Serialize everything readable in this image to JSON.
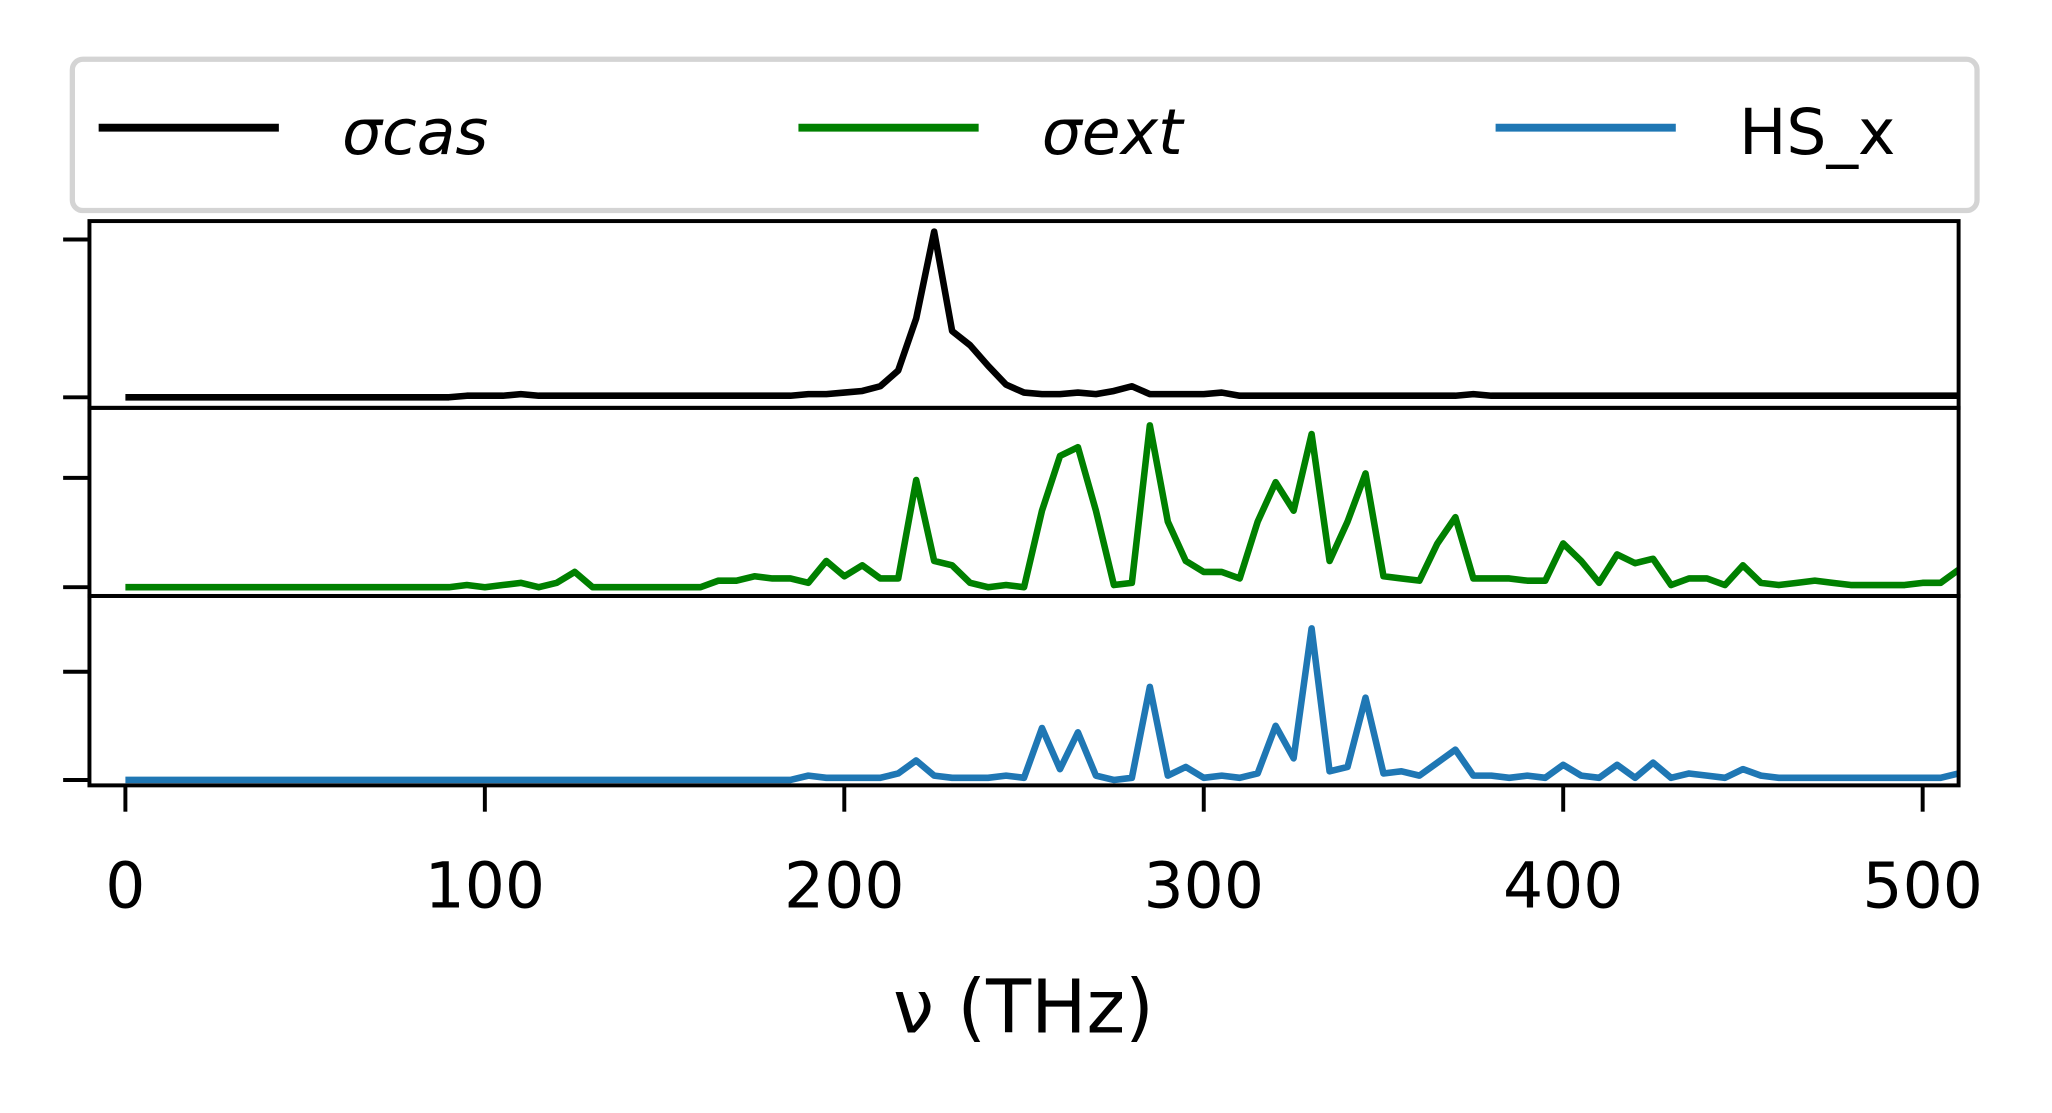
{
  "chart_data": {
    "type": "line",
    "xlabel": "ν (THz)",
    "legend": "upper center",
    "grid": false,
    "xlim": [
      -10,
      510
    ],
    "xticks": [
      0,
      100,
      200,
      300,
      400,
      500
    ],
    "x": [
      0,
      20,
      40,
      60,
      80,
      90,
      95,
      100,
      105,
      110,
      115,
      120,
      125,
      130,
      135,
      140,
      145,
      150,
      155,
      160,
      165,
      170,
      175,
      180,
      185,
      190,
      195,
      200,
      205,
      210,
      215,
      220,
      225,
      230,
      235,
      240,
      245,
      250,
      255,
      260,
      265,
      270,
      275,
      280,
      285,
      290,
      295,
      300,
      305,
      310,
      315,
      320,
      325,
      330,
      335,
      340,
      345,
      350,
      355,
      360,
      365,
      370,
      375,
      380,
      385,
      390,
      395,
      400,
      405,
      410,
      415,
      420,
      425,
      430,
      435,
      440,
      445,
      450,
      455,
      460,
      465,
      470,
      475,
      480,
      485,
      490,
      495,
      500,
      505,
      510
    ],
    "series": [
      {
        "name": "σcas",
        "color": "#000000",
        "ylim": [
          -0.067,
          1.117
        ],
        "yticks": [
          0,
          1
        ],
        "values": [
          0,
          0,
          0,
          0,
          0,
          0,
          0.01,
          0.01,
          0.01,
          0.02,
          0.01,
          0.01,
          0.01,
          0.01,
          0.01,
          0.01,
          0.01,
          0.01,
          0.01,
          0.01,
          0.01,
          0.01,
          0.01,
          0.01,
          0.01,
          0.02,
          0.02,
          0.03,
          0.04,
          0.07,
          0.17,
          0.5,
          1.05,
          0.42,
          0.33,
          0.2,
          0.08,
          0.03,
          0.02,
          0.02,
          0.03,
          0.02,
          0.04,
          0.07,
          0.02,
          0.02,
          0.02,
          0.02,
          0.03,
          0.01,
          0.01,
          0.01,
          0.01,
          0.01,
          0.01,
          0.01,
          0.01,
          0.01,
          0.01,
          0.01,
          0.01,
          0.01,
          0.02,
          0.01,
          0.01,
          0.01,
          0.01,
          0.01,
          0.01,
          0.01,
          0.01,
          0.01,
          0.01,
          0.01,
          0.01,
          0.01,
          0.01,
          0.01,
          0.01,
          0.01,
          0.01,
          0.01,
          0.01,
          0.01,
          0.01,
          0.01,
          0.01,
          0.01,
          0.01,
          0.01
        ]
      },
      {
        "name": "σext",
        "color": "#008000",
        "ylim": [
          -0.04,
          0.82
        ],
        "yticks": [
          0,
          0.5
        ],
        "values": [
          0,
          0,
          0,
          0,
          0,
          0,
          0.01,
          0,
          0.01,
          0.02,
          0,
          0.02,
          0.07,
          0,
          0,
          0,
          0,
          0,
          0,
          0,
          0.03,
          0.03,
          0.05,
          0.04,
          0.04,
          0.02,
          0.12,
          0.05,
          0.1,
          0.04,
          0.04,
          0.49,
          0.12,
          0.1,
          0.02,
          0,
          0.01,
          0,
          0.35,
          0.6,
          0.64,
          0.35,
          0.01,
          0.02,
          0.74,
          0.3,
          0.12,
          0.07,
          0.07,
          0.04,
          0.3,
          0.48,
          0.35,
          0.7,
          0.12,
          0.3,
          0.52,
          0.05,
          0.04,
          0.03,
          0.2,
          0.32,
          0.04,
          0.04,
          0.04,
          0.03,
          0.03,
          0.2,
          0.12,
          0.02,
          0.15,
          0.11,
          0.13,
          0.01,
          0.04,
          0.04,
          0.01,
          0.1,
          0.02,
          0.01,
          0.02,
          0.03,
          0.02,
          0.01,
          0.01,
          0.01,
          0.01,
          0.02,
          0.02,
          0.08
        ]
      },
      {
        "name": "HS_x",
        "color": "#1f77b4",
        "ylim": [
          -0.025,
          0.85
        ],
        "yticks": [
          0,
          0.5
        ],
        "values": [
          0,
          0,
          0,
          0,
          0,
          0,
          0,
          0,
          0,
          0,
          0,
          0,
          0,
          0,
          0,
          0,
          0,
          0,
          0,
          0,
          0,
          0,
          0,
          0,
          0,
          0.02,
          0.01,
          0.01,
          0.01,
          0.01,
          0.03,
          0.09,
          0.02,
          0.01,
          0.01,
          0.01,
          0.02,
          0.01,
          0.24,
          0.05,
          0.22,
          0.02,
          0,
          0.01,
          0.43,
          0.02,
          0.06,
          0.01,
          0.02,
          0.01,
          0.03,
          0.25,
          0.1,
          0.7,
          0.04,
          0.06,
          0.38,
          0.03,
          0.04,
          0.02,
          0.08,
          0.14,
          0.02,
          0.02,
          0.01,
          0.02,
          0.01,
          0.07,
          0.02,
          0.01,
          0.07,
          0.01,
          0.08,
          0.01,
          0.03,
          0.02,
          0.01,
          0.05,
          0.02,
          0.01,
          0.01,
          0.01,
          0.01,
          0.01,
          0.01,
          0.01,
          0.01,
          0.01,
          0.01,
          0.03
        ]
      }
    ]
  }
}
